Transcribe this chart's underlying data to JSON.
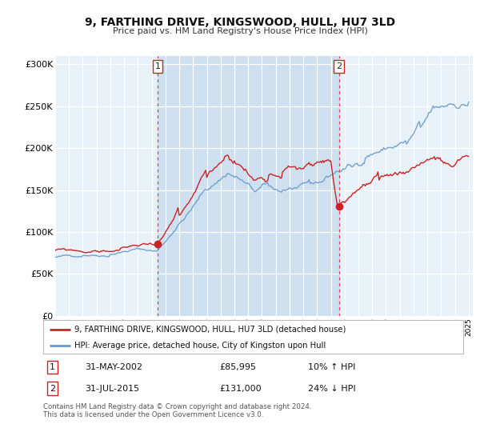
{
  "title": "9, FARTHING DRIVE, KINGSWOOD, HULL, HU7 3LD",
  "subtitle": "Price paid vs. HM Land Registry's House Price Index (HPI)",
  "ylim": [
    0,
    310000
  ],
  "yticks": [
    0,
    50000,
    100000,
    150000,
    200000,
    250000,
    300000
  ],
  "ytick_labels": [
    "£0",
    "£50K",
    "£100K",
    "£150K",
    "£200K",
    "£250K",
    "£300K"
  ],
  "plot_bg_color": "#e8f0f8",
  "sale1_date_num": 2002.42,
  "sale1_price": 85995,
  "sale2_date_num": 2015.58,
  "sale2_price": 131000,
  "legend_line1": "9, FARTHING DRIVE, KINGSWOOD, HULL, HU7 3LD (detached house)",
  "legend_line2": "HPI: Average price, detached house, City of Kingston upon Hull",
  "table_row1": [
    "1",
    "31-MAY-2002",
    "£85,995",
    "10% ↑ HPI"
  ],
  "table_row2": [
    "2",
    "31-JUL-2015",
    "£131,000",
    "24% ↓ HPI"
  ],
  "footer1": "Contains HM Land Registry data © Crown copyright and database right 2024.",
  "footer2": "This data is licensed under the Open Government Licence v3.0.",
  "hpi_color": "#6699cc",
  "price_color": "#cc2222",
  "vline_color": "#dd4444",
  "xmin": 1995.0,
  "xmax": 2025.3
}
